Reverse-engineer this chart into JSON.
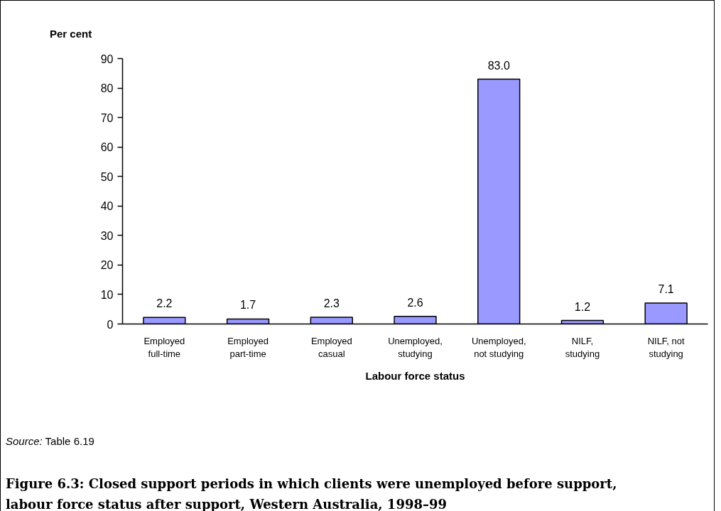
{
  "chart_data": {
    "type": "bar",
    "title": "Figure 6.3: Closed support periods in which clients were unemployed before support, labour force status after support, Western Australia, 1998–99",
    "xlabel": "Labour force status",
    "ylabel": "Per cent",
    "annotations": [
      "Source: Table 6.19"
    ],
    "categories": [
      "Employed full-time",
      "Employed part-time",
      "Employed casual",
      "Unemployed, studying",
      "Unemployed, not studying",
      "NILF, studying",
      "NILF, not studying"
    ],
    "values": [
      2.2,
      1.7,
      2.3,
      2.6,
      83.0,
      1.2,
      7.1
    ],
    "value_labels": [
      "2.2",
      "1.7",
      "2.3",
      "2.6",
      "83.0",
      "1.2",
      "7.1"
    ],
    "color": "#9999ff",
    "ylim": [
      0,
      90
    ],
    "yticks": [
      0,
      10,
      20,
      30,
      40,
      50,
      60,
      70,
      80,
      90
    ],
    "grid": false
  }
}
